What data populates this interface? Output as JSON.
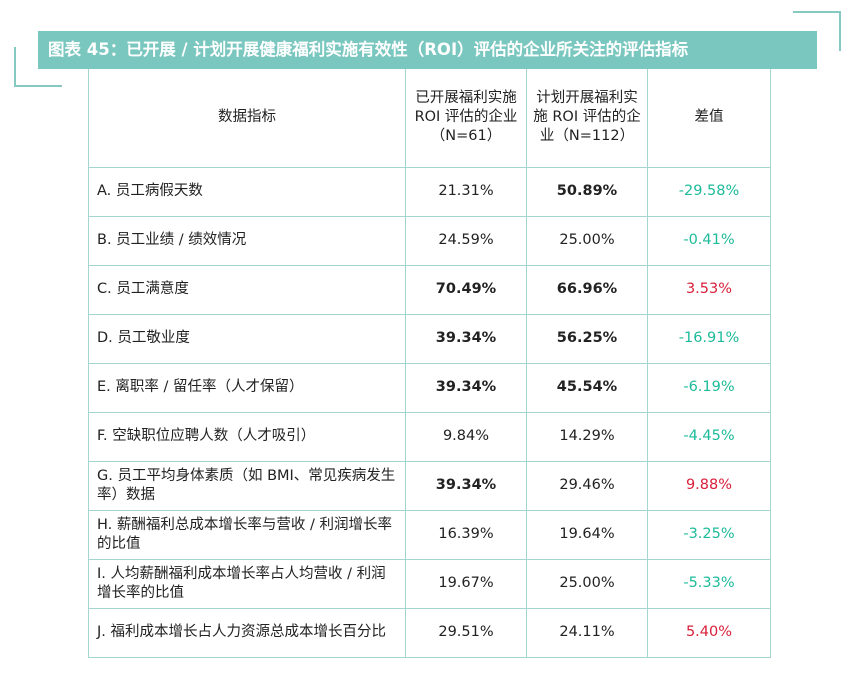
{
  "title": "图表 45：已开展 / 计划开展健康福利实施有效性（ROI）评估的企业所关注的评估指标",
  "headers": {
    "metric": "数据指标",
    "done": "已开展福利实施 ROI 评估的企业（N=61）",
    "planned": "计划开展福利实施 ROI 评估的企业（N=112）",
    "diff": "差值"
  },
  "colors": {
    "accent": "#7ac7bf",
    "border": "#a5d5cf",
    "negative_diff": "#1dbb9a",
    "positive_diff": "#d8203b"
  },
  "rows": [
    {
      "metric": "A. 员工病假天数",
      "done": "21.31%",
      "planned": "50.89%",
      "diff": "-29.58%"
    },
    {
      "metric": "B. 员工业绩 / 绩效情况",
      "done": "24.59%",
      "planned": "25.00%",
      "diff": "-0.41%"
    },
    {
      "metric": "C. 员工满意度",
      "done": "70.49%",
      "planned": "66.96%",
      "diff": "3.53%"
    },
    {
      "metric": "D. 员工敬业度",
      "done": "39.34%",
      "planned": "56.25%",
      "diff": "-16.91%"
    },
    {
      "metric": "E. 离职率 / 留任率（人才保留）",
      "done": "39.34%",
      "planned": "45.54%",
      "diff": "-6.19%"
    },
    {
      "metric": "F. 空缺职位应聘人数（人才吸引）",
      "done": "9.84%",
      "planned": "14.29%",
      "diff": "-4.45%"
    },
    {
      "metric": "G. 员工平均身体素质（如 BMI、常见疾病发生率）数据",
      "done": "39.34%",
      "planned": "29.46%",
      "diff": "9.88%"
    },
    {
      "metric": "H. 薪酬福利总成本增长率与营收 / 利润增长率的比值",
      "done": "16.39%",
      "planned": "19.64%",
      "diff": "-3.25%"
    },
    {
      "metric": "I. 人均薪酬福利成本增长率占人均营收 / 利润增长率的比值",
      "done": "19.67%",
      "planned": "25.00%",
      "diff": "-5.33%"
    },
    {
      "metric": "J. 福利成本增长占人力资源总成本增长百分比",
      "done": "29.51%",
      "planned": "24.11%",
      "diff": "5.40%"
    }
  ]
}
